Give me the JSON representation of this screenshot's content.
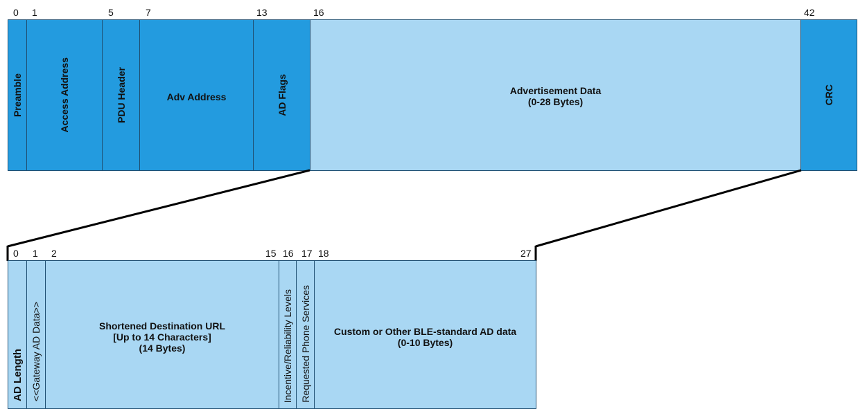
{
  "top_packet": {
    "indices": [
      "0",
      "1",
      "5",
      "7",
      "13",
      "16",
      "42"
    ],
    "fields": [
      {
        "label": "Preamble"
      },
      {
        "label": "Access Address"
      },
      {
        "label": "PDU Header"
      },
      {
        "label": "Adv Address"
      },
      {
        "label": "AD Flags"
      },
      {
        "label": "Advertisement Data\n(0-28 Bytes)"
      },
      {
        "label": "CRC"
      }
    ]
  },
  "bottom_packet": {
    "indices": [
      "0",
      "1",
      "2",
      "15",
      "16",
      "17",
      "18",
      "27"
    ],
    "fields": [
      {
        "label": "AD Length"
      },
      {
        "label": "<<Gateway AD Data>>"
      },
      {
        "label": "Shortened Destination URL\n[Up to 14 Characters]\n(14 Bytes)"
      },
      {
        "label": "Incentive/Reliability Levels"
      },
      {
        "label": "Requested Phone Services"
      },
      {
        "label": "Custom or Other BLE-standard AD data\n(0-10 Bytes)"
      }
    ]
  },
  "colors": {
    "header_field": "#239bdf",
    "data_field": "#a9d7f3",
    "border": "#1f4f72"
  }
}
